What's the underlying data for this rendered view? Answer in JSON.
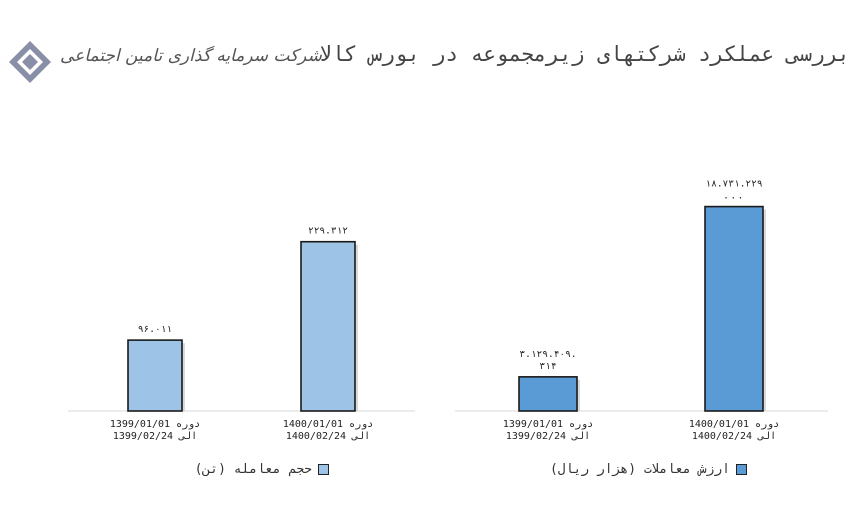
{
  "header": {
    "title": "بررسی عملکرد شرکتهای زیرمجموعه در بورس کالا",
    "logo_text": "شرکت سرمایه گذاری تامین اجتماعی"
  },
  "chart_data": [
    {
      "type": "bar",
      "categories": [
        "دوره 1399/01/01 الی 1399/02/24",
        "دوره 1400/01/01 الی 1400/02/24"
      ],
      "category_lines": [
        [
          "1399/01/01 دوره",
          "1399/02/24 الی"
        ],
        [
          "1400/01/01 دوره",
          "1400/02/24 الی"
        ]
      ],
      "series": [
        {
          "name": "حجم معامله (تن)",
          "values": [
            96011,
            229312
          ]
        }
      ],
      "data_labels": [
        "۹۶.۰۱۱",
        "۲۲۹.۳۱۲"
      ],
      "color": "#9dc3e6",
      "ylim": [
        0,
        340000
      ],
      "legend_position": "bottom"
    },
    {
      "type": "bar",
      "categories": [
        "دوره 1399/01/01 الی 1399/02/24",
        "دوره 1400/01/01 الی 1400/02/24"
      ],
      "category_lines": [
        [
          "1399/01/01 دوره",
          "1399/02/24 الی"
        ],
        [
          "1400/01/01 دوره",
          "1400/02/24 الی"
        ]
      ],
      "series": [
        {
          "name": "ارزش معاملات (هزار ریال)",
          "values": [
            3129409314,
            18731229000
          ]
        }
      ],
      "data_labels": [
        "۳.۱۲۹.۴۰۹.\n۳۱۴",
        "۱۸.۷۳۱.۲۲۹\n..."
      ],
      "color": "#5b9bd5",
      "ylim": [
        0,
        23000000000
      ],
      "legend_position": "bottom"
    }
  ]
}
